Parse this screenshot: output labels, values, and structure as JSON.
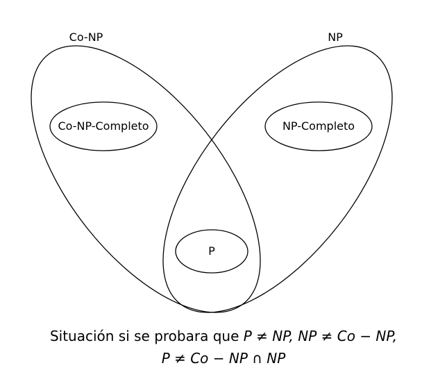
{
  "sets": {
    "co_np": "Co-NP",
    "np": "NP",
    "co_np_completo": "Co-NP-Completo",
    "np_completo": "NP-Completo",
    "p": "P"
  },
  "caption": {
    "line1_text": "Situación si se probara que ",
    "line1_math": "P ≠ NP, NP ≠ Co − NP,",
    "line2_math": "P ≠ Co − NP ∩ NP"
  },
  "colors": {
    "stroke": "#000000",
    "background": "#ffffff"
  }
}
